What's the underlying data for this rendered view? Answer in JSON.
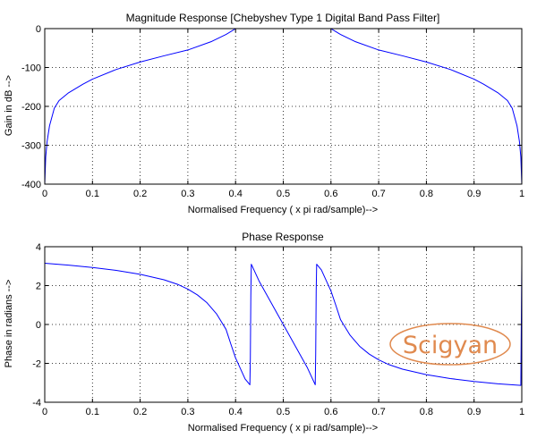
{
  "page": {
    "background": "#ffffff"
  },
  "watermark": {
    "text": "Scigyan",
    "color": "#e08a4f"
  },
  "chart_data": [
    {
      "type": "line",
      "title": "Magnitude Response [Chebyshev Type 1 Digital Band Pass Filter]",
      "xlabel": "Normalised Frequency ( x pi rad/sample)-->",
      "ylabel": "Gain in dB -->",
      "xlim": [
        0,
        1
      ],
      "ylim": [
        -400,
        0
      ],
      "xticks": [
        0,
        0.1,
        0.2,
        0.3,
        0.4,
        0.5,
        0.6,
        0.7,
        0.8,
        0.9,
        1
      ],
      "xtick_labels": [
        "0",
        "0.1",
        "0.2",
        "0.3",
        "0.4",
        "0.5",
        "0.6",
        "0.7",
        "0.8",
        "0.9",
        "1"
      ],
      "yticks": [
        -400,
        -300,
        -200,
        -100,
        0
      ],
      "ytick_labels": [
        "-400",
        "-300",
        "-200",
        "-100",
        "0"
      ],
      "grid": true,
      "line_color": "#0000ff",
      "series": [
        {
          "x": [
            0,
            0.002,
            0.005,
            0.01,
            0.02,
            0.03,
            0.05,
            0.08,
            0.1,
            0.15,
            0.2,
            0.25,
            0.3,
            0.35,
            0.38,
            0.395,
            0.4,
            0.45,
            0.5,
            0.55,
            0.6,
            0.605,
            0.62,
            0.65,
            0.7,
            0.75,
            0.8,
            0.85,
            0.9,
            0.92,
            0.95,
            0.97,
            0.98,
            0.99,
            0.995,
            0.998,
            1
          ],
          "y": [
            -400,
            -330,
            -290,
            -250,
            -205,
            -185,
            -165,
            -143,
            -130,
            -105,
            -86,
            -70,
            -55,
            -33,
            -15,
            -4,
            0,
            0,
            0,
            0,
            0,
            -4,
            -15,
            -33,
            -55,
            -70,
            -86,
            -105,
            -130,
            -143,
            -165,
            -185,
            -205,
            -250,
            -290,
            -330,
            -400
          ]
        }
      ]
    },
    {
      "type": "line",
      "title": "Phase Response",
      "xlabel": "Normalised Frequency ( x pi rad/sample)-->",
      "ylabel": "Phase in radians -->",
      "xlim": [
        0,
        1
      ],
      "ylim": [
        -4,
        4
      ],
      "xticks": [
        0,
        0.1,
        0.2,
        0.3,
        0.4,
        0.5,
        0.6,
        0.7,
        0.8,
        0.9,
        1
      ],
      "xtick_labels": [
        "0",
        "0.1",
        "0.2",
        "0.3",
        "0.4",
        "0.5",
        "0.6",
        "0.7",
        "0.8",
        "0.9",
        "1"
      ],
      "yticks": [
        -4,
        -2,
        0,
        2,
        4
      ],
      "ytick_labels": [
        "-4",
        "-2",
        "0",
        "2",
        "4"
      ],
      "grid": true,
      "line_color": "#0000ff",
      "series": [
        {
          "x": [
            0,
            0.05,
            0.1,
            0.15,
            0.2,
            0.25,
            0.28,
            0.3,
            0.32,
            0.34,
            0.36,
            0.38,
            0.39,
            0.4,
            0.42,
            0.43,
            0.431,
            0.432,
            0.433,
            0.45,
            0.5,
            0.55,
            0.567,
            0.568,
            0.569,
            0.57,
            0.58,
            0.6,
            0.61,
            0.62,
            0.64,
            0.66,
            0.68,
            0.7,
            0.72,
            0.75,
            0.8,
            0.85,
            0.9,
            0.95,
            0.998,
            0.999,
            1
          ],
          "y": [
            3.15,
            3.05,
            2.93,
            2.78,
            2.58,
            2.3,
            2.05,
            1.82,
            1.52,
            1.12,
            0.55,
            -0.25,
            -1.0,
            -1.72,
            -2.8,
            -3.1,
            -1.72,
            1.5,
            3.1,
            2.2,
            0,
            -2.2,
            -3.1,
            -1.5,
            1.72,
            3.1,
            2.8,
            1.72,
            1.0,
            0.25,
            -0.55,
            -1.12,
            -1.52,
            -1.82,
            -2.05,
            -2.3,
            -2.58,
            -2.78,
            -2.93,
            -3.05,
            -3.13,
            0,
            3.15
          ]
        }
      ]
    }
  ]
}
